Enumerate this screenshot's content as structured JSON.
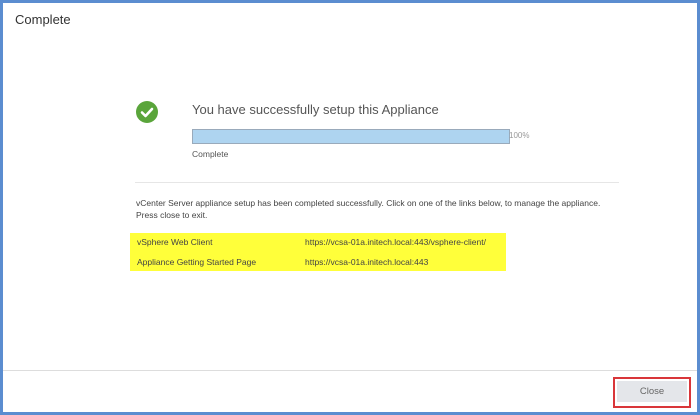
{
  "dialog": {
    "title": "Complete"
  },
  "progress": {
    "icon": "check-circle-icon",
    "heading": "You have successfully setup this Appliance",
    "percent": 100,
    "percent_label": "100%",
    "status": "Complete"
  },
  "message": "vCenter Server appliance setup has been completed successfully. Click on one of the links below, to manage the appliance. Press close to exit.",
  "links": [
    {
      "label": "vSphere Web Client",
      "url": "https://vcsa-01a.initech.local:443/vsphere-client/"
    },
    {
      "label": "Appliance Getting Started Page",
      "url": "https://vcsa-01a.initech.local:443"
    }
  ],
  "footer": {
    "close_label": "Close"
  },
  "colors": {
    "success": "#5aa53b",
    "progress_fill": "#aed4f0",
    "highlight": "#ffff3a",
    "annotation": "#d9363a",
    "frame": "#5b8dd0"
  }
}
